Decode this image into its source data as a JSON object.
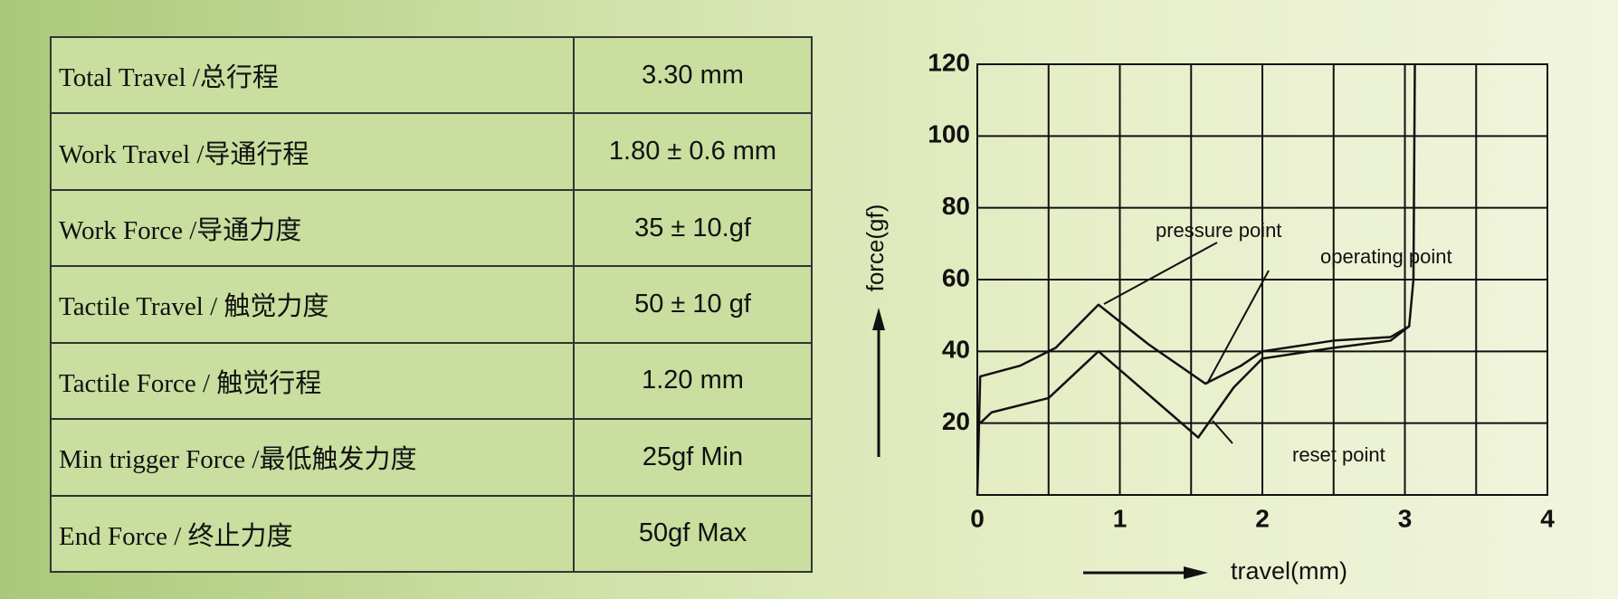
{
  "table": {
    "rows": [
      [
        "Total  Travel /总行程",
        "3.30  mm"
      ],
      [
        "Work  Travel /导通行程",
        "1.80 ± 0.6 mm"
      ],
      [
        "Work  Force  /导通力度",
        "35 ± 10.gf"
      ],
      [
        "Tactile  Travel  / 触觉力度",
        "50 ± 10 gf"
      ],
      [
        "Tactile  Force /  触觉行程",
        "1.20  mm"
      ],
      [
        "Min  trigger  Force /最低触发力度",
        "25gf   Min"
      ],
      [
        "End  Force / 终止力度",
        "50gf   Max"
      ]
    ]
  },
  "chart_data": {
    "type": "line",
    "x_label": "travel(mm)",
    "y_label": "force(gf)",
    "xlim": [
      0,
      4
    ],
    "ylim": [
      0,
      120
    ],
    "xticks": [
      0,
      1,
      2,
      3,
      4
    ],
    "yticks": [
      20,
      40,
      60,
      80,
      100,
      120
    ],
    "grid": true,
    "color": "#111111",
    "annotations": [
      "pressure point",
      "operating point",
      "reset point"
    ],
    "series": [
      {
        "x": [
          0,
          0.02,
          0.3,
          0.55,
          0.85,
          1.2,
          1.6,
          1.85,
          2,
          2.5,
          2.9,
          3.03,
          3.06,
          3.07
        ],
        "values": [
          0,
          33,
          36,
          41,
          53,
          42,
          31,
          36,
          40,
          43,
          44,
          47,
          60,
          120
        ]
      },
      {
        "x": [
          0.02,
          0.1,
          0.5,
          0.85,
          1.2,
          1.55,
          1.8,
          2,
          2.5,
          2.9,
          3.03
        ],
        "values": [
          20,
          23,
          27,
          40,
          28,
          16,
          30,
          38,
          41,
          43,
          47
        ]
      }
    ]
  }
}
